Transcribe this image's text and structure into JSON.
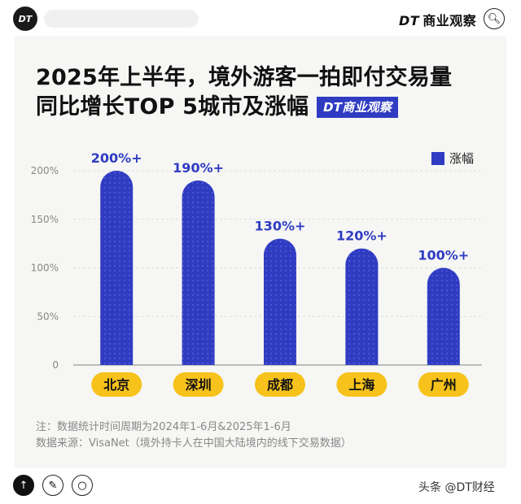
{
  "header": {
    "logo_text": "DT",
    "brand_short": "DT",
    "brand_name": "商业观察"
  },
  "title": {
    "line1": "2025年上半年，境外游客一拍即付交易量",
    "line2": "同比增长TOP 5城市及涨幅",
    "badge": "DT商业观察"
  },
  "chart_data": {
    "type": "bar",
    "categories": [
      "北京",
      "深圳",
      "成都",
      "上海",
      "广州"
    ],
    "values": [
      200,
      190,
      130,
      120,
      100
    ],
    "data_labels": [
      "200%+",
      "190%+",
      "130%+",
      "120%+",
      "100%+"
    ],
    "series": [
      {
        "name": "涨幅",
        "values": [
          200,
          190,
          130,
          120,
          100
        ]
      }
    ],
    "yticks": [
      "0",
      "50%",
      "100%",
      "150%",
      "200%"
    ],
    "ytick_values": [
      0,
      50,
      100,
      150,
      200
    ],
    "ylim": [
      0,
      200
    ],
    "legend_position": "top-right",
    "bar_color": "#2f3cc2",
    "category_pill_color": "#f7c21b"
  },
  "notes": {
    "line1": "注：数据统计时间周期为2024年1-6月&2025年1-6月",
    "line2": "数据来源：VisaNet（境外持卡人在中国大陆境内的线下交易数据）"
  },
  "footer": {
    "source_tag": "头条 @DT财经"
  }
}
